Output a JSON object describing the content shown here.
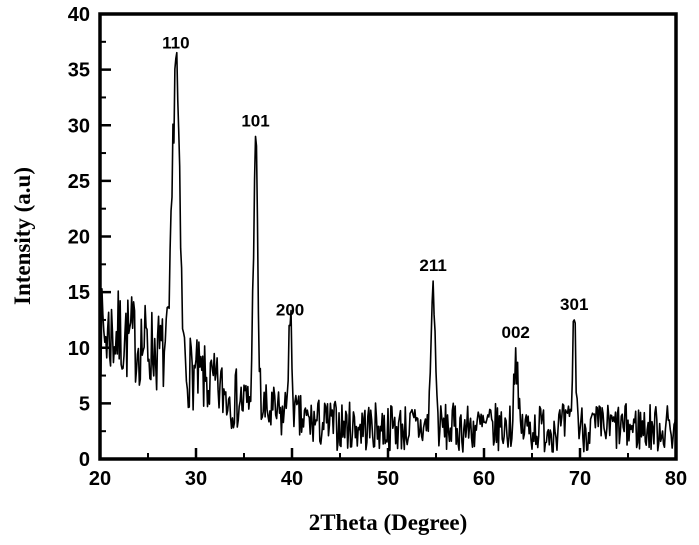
{
  "chart_data": {
    "type": "line",
    "title": "",
    "xlabel": "2Theta (Degree)",
    "ylabel": "Intensity (a.u)",
    "xlim": [
      20,
      80
    ],
    "ylim": [
      0,
      40
    ],
    "x_ticks": [
      20,
      30,
      40,
      50,
      60,
      70,
      80
    ],
    "y_ticks": [
      0,
      5,
      10,
      15,
      20,
      25,
      30,
      35,
      40
    ],
    "x_minor_ticks": [
      25,
      35,
      45,
      55,
      65,
      75
    ],
    "y_minor_step": 2.5,
    "grid": false,
    "legend": "none",
    "line_color": "#000000",
    "frame_color": "#000000",
    "background": "#ffffff",
    "series_name": "XRD pattern",
    "peaks": [
      {
        "label": "110",
        "two_theta": 27.9,
        "intensity": 36,
        "width": 0.5
      },
      {
        "label": "101",
        "two_theta": 36.2,
        "intensity": 29,
        "width": 0.3
      },
      {
        "label": "200",
        "two_theta": 39.8,
        "intensity": 12,
        "width": 0.3
      },
      {
        "label": "211",
        "two_theta": 54.7,
        "intensity": 16,
        "width": 0.3
      },
      {
        "label": "002",
        "two_theta": 63.3,
        "intensity": 10,
        "width": 0.25
      },
      {
        "label": "301",
        "two_theta": 69.4,
        "intensity": 12.5,
        "width": 0.25
      }
    ],
    "noise": {
      "floor": 2.8,
      "hump_height": 8.5,
      "hump_width": 13,
      "amp_floor": 2.2,
      "amp_hump": 2.0,
      "seed": 7,
      "x_step": 0.1
    }
  }
}
